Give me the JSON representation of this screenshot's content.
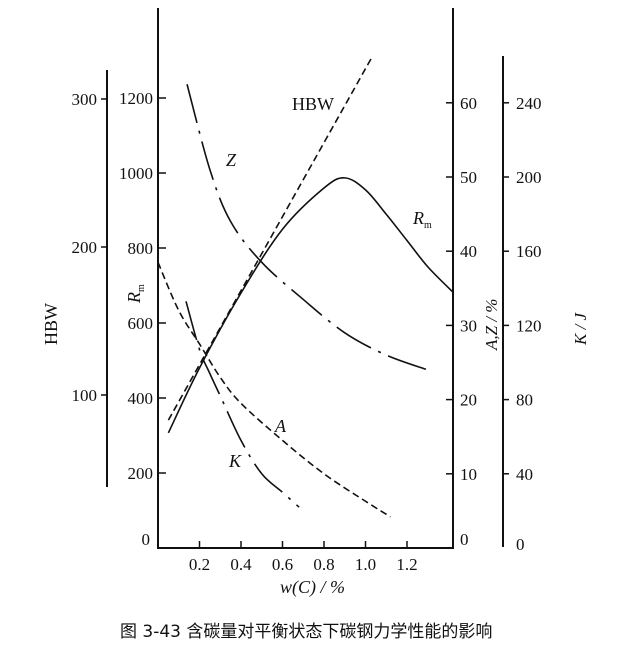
{
  "chart_data": {
    "type": "line",
    "caption": "图 3-43    含碳量对平衡状态下碳钢力学性能的影响",
    "xlabel": "w(C) / %",
    "xlim": [
      0,
      1.42
    ],
    "xticks": [
      0.2,
      0.4,
      0.6,
      0.8,
      1.0,
      1.2
    ],
    "xtick_labels": [
      "0.2",
      "0.4",
      "0.6",
      "0.8",
      "1.0",
      "1.2"
    ],
    "grid": false,
    "axes": {
      "hbw": {
        "label": "HBW",
        "ticks": [
          100,
          200,
          300
        ],
        "tick_labels": [
          "100",
          "200",
          "300"
        ],
        "position": "far-left"
      },
      "rm": {
        "label": "Rm",
        "ticks": [
          0,
          200,
          400,
          600,
          800,
          1000,
          1200
        ],
        "tick_labels": [
          "0",
          "200",
          "400",
          "600",
          "800",
          "1000",
          "1200"
        ],
        "position": "left"
      },
      "az": {
        "label": "A,Z / %",
        "ticks": [
          0,
          10,
          20,
          30,
          40,
          50,
          60
        ],
        "tick_labels": [
          "0",
          "10",
          "20",
          "30",
          "40",
          "50",
          "60"
        ],
        "position": "right"
      },
      "k": {
        "label": "K / J",
        "ticks": [
          0,
          40,
          80,
          120,
          160,
          200,
          240
        ],
        "tick_labels": [
          "0",
          "40",
          "80",
          "120",
          "160",
          "200",
          "240"
        ],
        "position": "far-right"
      }
    },
    "series": [
      {
        "name": "HBW",
        "axis": "hbw",
        "style": "dashed",
        "x": [
          0.05,
          1.03
        ],
        "y": [
          83,
          328
        ]
      },
      {
        "name": "Rm",
        "axis": "rm",
        "style": "solid",
        "x": [
          0.05,
          0.2,
          0.4,
          0.6,
          0.8,
          0.9,
          1.0,
          1.1,
          1.2,
          1.3,
          1.42
        ],
        "y": [
          307,
          480,
          680,
          850,
          960,
          987,
          955,
          890,
          820,
          750,
          683
        ]
      },
      {
        "name": "Z",
        "axis": "az",
        "style": "dash-dot",
        "x": [
          0.14,
          0.25,
          0.35,
          0.5,
          0.7,
          0.9,
          1.1,
          1.3
        ],
        "y": [
          62.5,
          51,
          44,
          38.5,
          33.5,
          29,
          26,
          24
        ]
      },
      {
        "name": "A",
        "axis": "az",
        "style": "dashed",
        "x": [
          0,
          0.1,
          0.2,
          0.3,
          0.4,
          0.6,
          0.8,
          1.0,
          1.12
        ],
        "y": [
          38.5,
          32,
          27.5,
          23,
          19.5,
          14.5,
          10,
          6.3,
          4.2
        ]
      },
      {
        "name": "K",
        "axis": "k",
        "style": "dash-dot",
        "x": [
          0.135,
          0.2,
          0.25,
          0.3,
          0.4,
          0.5,
          0.6,
          0.68
        ],
        "y": [
          133,
          107,
          94,
          82,
          58,
          40,
          30,
          22
        ]
      }
    ],
    "colors": {
      "ink": "#111111"
    }
  }
}
